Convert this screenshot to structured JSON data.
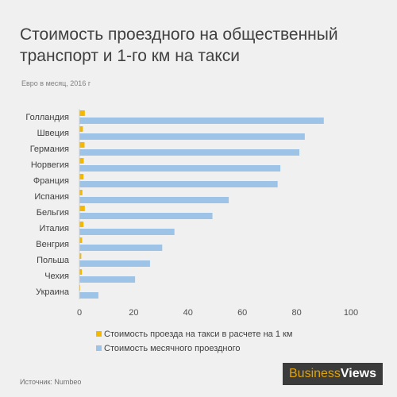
{
  "header": {
    "title": "Стоимость проездного на общественный транспорт и 1-го км на такси",
    "subtitle": "Евро в месяц, 2016 г"
  },
  "footer": {
    "source": "Источник: Numbeo",
    "logo_part1": "Business",
    "logo_part2": "Views"
  },
  "colors": {
    "taxi": "#f5b800",
    "monthly": "#9dc3e6"
  },
  "chart_data": {
    "type": "bar",
    "orientation": "horizontal",
    "categories": [
      "Голландия",
      "Швеция",
      "Германия",
      "Норвегия",
      "Франция",
      "Испания",
      "Бельгия",
      "Италия",
      "Венгрия",
      "Польша",
      "Чехия",
      "Украина"
    ],
    "series": [
      {
        "name": "Стоимость проезда на такси в расчете на 1 км",
        "values": [
          2.0,
          1.3,
          1.9,
          1.6,
          1.5,
          1.1,
          2.0,
          1.5,
          1.0,
          0.7,
          0.9,
          0.3
        ]
      },
      {
        "name": "Стоимость месячного проездного",
        "values": [
          90,
          83,
          81,
          74,
          73,
          55,
          49,
          35,
          30.5,
          26,
          20.5,
          7
        ]
      }
    ],
    "xlim": [
      0,
      100
    ],
    "xticks": [
      "0",
      "20",
      "40",
      "60",
      "80",
      "100"
    ],
    "xlabel": "",
    "ylabel": "",
    "grid": false,
    "legend_position": "bottom"
  }
}
